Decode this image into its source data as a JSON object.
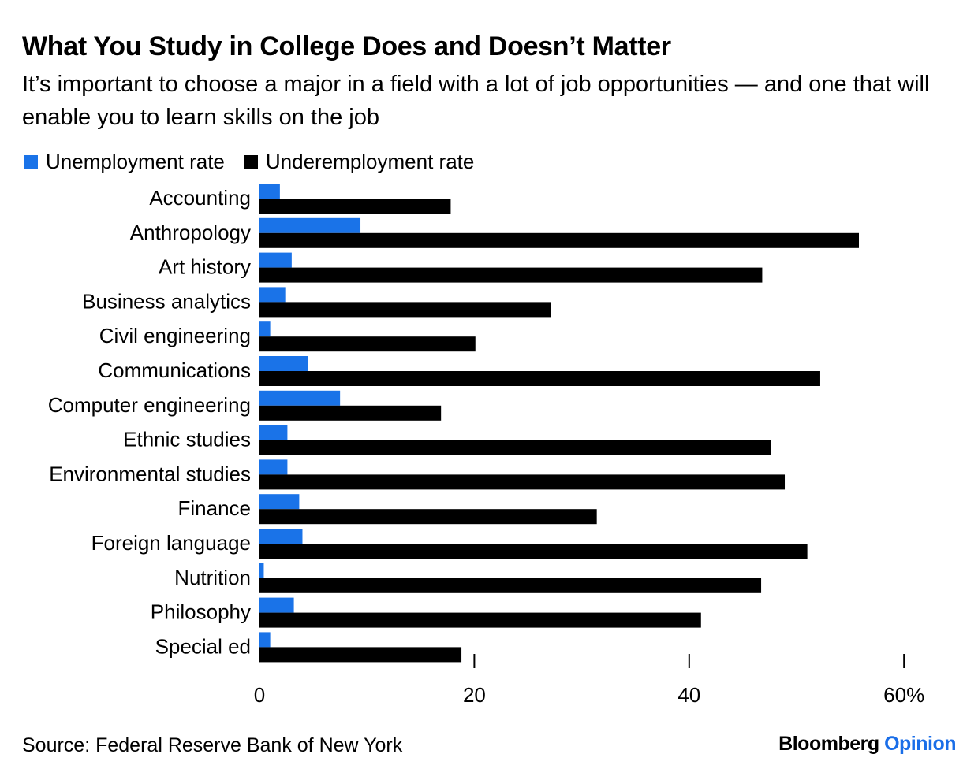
{
  "header": {
    "title": "What You Study in College Does and Doesn’t Matter",
    "subtitle": "It’s important to choose a major in a field with a lot of job opportunities — and one that will enable you to learn skills on the job"
  },
  "legend": {
    "items": [
      {
        "label": "Unemployment rate",
        "color": "#1a73e8"
      },
      {
        "label": "Underemployment rate",
        "color": "#000000"
      }
    ]
  },
  "footer": {
    "source": "Source: Federal Reserve Bank of New York",
    "brand_primary": "Bloomberg",
    "brand_secondary": "Opinion"
  },
  "chart_data": {
    "type": "bar",
    "orientation": "horizontal",
    "categories": [
      "Accounting",
      "Anthropology",
      "Art history",
      "Business analytics",
      "Civil engineering",
      "Communications",
      "Computer engineering",
      "Ethnic studies",
      "Environmental studies",
      "Finance",
      "Foreign language",
      "Nutrition",
      "Philosophy",
      "Special ed"
    ],
    "series": [
      {
        "name": "Unemployment rate",
        "color": "#1a73e8",
        "values": [
          1.9,
          9.4,
          3.0,
          2.4,
          1.0,
          4.5,
          7.5,
          2.6,
          2.6,
          3.7,
          4.0,
          0.4,
          3.2,
          1.0
        ]
      },
      {
        "name": "Underemployment rate",
        "color": "#000000",
        "values": [
          17.8,
          55.8,
          46.8,
          27.1,
          20.1,
          52.2,
          16.9,
          47.6,
          48.9,
          31.4,
          51.0,
          46.7,
          41.1,
          18.8
        ]
      }
    ],
    "xticks": [
      {
        "value": 0,
        "label": "0"
      },
      {
        "value": 20,
        "label": "20"
      },
      {
        "value": 40,
        "label": "40"
      },
      {
        "value": 60,
        "label": "60%"
      }
    ],
    "xlim": [
      0,
      60
    ],
    "grid": false,
    "legend_position": "top-left"
  }
}
